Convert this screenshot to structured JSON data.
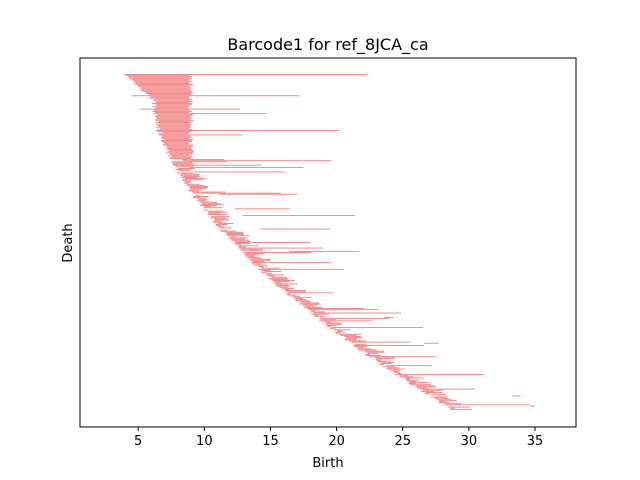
{
  "chart_data": {
    "type": "barcode",
    "title": "Barcode1 for ref_8JCA_ca",
    "xlabel": "Birth",
    "ylabel": "Death",
    "xlim": [
      0.6,
      38.1
    ],
    "xticks": [
      5,
      10,
      15,
      20,
      25,
      30,
      35
    ],
    "yticks": [],
    "grid": false,
    "bar_color": "#f08080",
    "bar_count": 300,
    "sample_bars": [
      {
        "start": 3.9,
        "end": 22.3
      },
      {
        "start": 4.5,
        "end": 17.2
      },
      {
        "start": 5.1,
        "end": 12.7
      },
      {
        "start": 6.3,
        "end": 20.2
      },
      {
        "start": 6.6,
        "end": 12.9
      },
      {
        "start": 8.3,
        "end": 11.5
      },
      {
        "start": 8.4,
        "end": 19.6
      },
      {
        "start": 8.9,
        "end": 17.5
      },
      {
        "start": 9.2,
        "end": 16.1
      },
      {
        "start": 11.1,
        "end": 17.0
      },
      {
        "start": 12.3,
        "end": 16.5
      },
      {
        "start": 12.9,
        "end": 21.4
      },
      {
        "start": 14.2,
        "end": 19.5
      },
      {
        "start": 16.4,
        "end": 21.7
      },
      {
        "start": 23.6,
        "end": 24.3
      },
      {
        "start": 26.6,
        "end": 27.7
      },
      {
        "start": 33.3,
        "end": 33.9
      },
      {
        "start": 34.6,
        "end": 35.0
      }
    ]
  }
}
